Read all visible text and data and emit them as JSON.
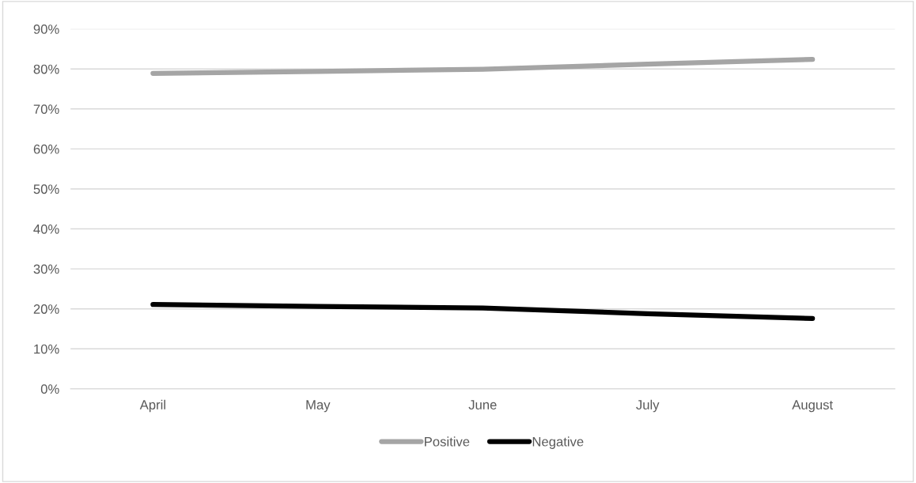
{
  "chart_data": {
    "type": "line",
    "categories": [
      "April",
      "May",
      "June",
      "July",
      "August"
    ],
    "series": [
      {
        "name": "Positive",
        "color": "#a5a5a5",
        "values": [
          78.9,
          79.4,
          79.9,
          81.2,
          82.4
        ]
      },
      {
        "name": "Negative",
        "color": "#000000",
        "values": [
          21.1,
          20.6,
          20.2,
          18.8,
          17.6
        ]
      }
    ],
    "ylim": [
      0,
      90
    ],
    "yticks": [
      {
        "value": 0,
        "label": "0%"
      },
      {
        "value": 10,
        "label": "10%"
      },
      {
        "value": 20,
        "label": "20%"
      },
      {
        "value": 30,
        "label": "30%"
      },
      {
        "value": 40,
        "label": "40%"
      },
      {
        "value": 50,
        "label": "50%"
      },
      {
        "value": 60,
        "label": "60%"
      },
      {
        "value": 70,
        "label": "70%"
      },
      {
        "value": 80,
        "label": "80%"
      },
      {
        "value": 90,
        "label": "90%"
      }
    ],
    "grid": "y",
    "legend": "bottom",
    "marker": "none",
    "line_style": "solid"
  }
}
